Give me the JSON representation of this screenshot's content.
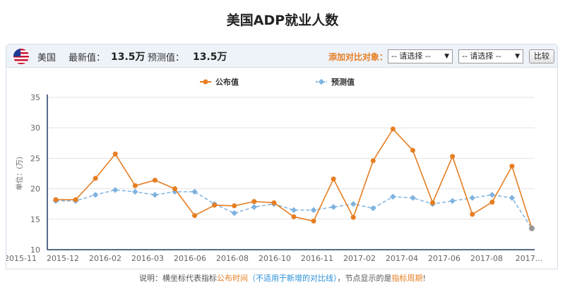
{
  "page": {
    "title": "美国ADP就业人数"
  },
  "topbar": {
    "country": "美国",
    "latest_label": "最新值：",
    "latest_value": "13.5万",
    "forecast_label": "预测值：",
    "forecast_value": "13.5万",
    "compare_label": "添加对比对象：",
    "select1": "-- 请选择 --",
    "select2": "-- 请选择 --",
    "compare_button": "比较"
  },
  "footer": {
    "p1": "说明：横坐标代表指标",
    "p2": "公布时间",
    "p3": "（不适用于新增的对比线）",
    "p4": "，节点显示的是",
    "p5": "指标周期",
    "p6": "!"
  },
  "chart_data": {
    "type": "line",
    "ylabel": "单位：(万)",
    "ylim": [
      10,
      35
    ],
    "yticks": [
      10,
      15,
      20,
      25,
      30,
      35
    ],
    "x_tick_labels": [
      "2015-11",
      "2015-12",
      "2016-02",
      "2016-03",
      "2016-06",
      "2016-08",
      "2016-10",
      "2016-11",
      "2017-02",
      "2017-04",
      "2017-06",
      "2017-08",
      "2017..."
    ],
    "legend_position": "top-center",
    "grid": {
      "horizontal": true,
      "vertical": false
    },
    "colors": {
      "published": "#e67e22",
      "forecast": "#7fb3e0"
    },
    "series": [
      {
        "name": "公布值",
        "style": "solid",
        "values": [
          18.2,
          18.2,
          21.7,
          25.7,
          20.5,
          21.4,
          20.0,
          15.6,
          17.3,
          17.2,
          17.9,
          17.7,
          15.4,
          14.7,
          21.6,
          15.3,
          24.6,
          29.8,
          26.3,
          17.7,
          25.3,
          15.8,
          17.8,
          23.7,
          13.5
        ]
      },
      {
        "name": "预测值",
        "style": "dashed",
        "values": [
          18.0,
          18.0,
          19.0,
          19.8,
          19.5,
          19.0,
          19.5,
          19.5,
          17.5,
          16.0,
          17.0,
          17.5,
          16.5,
          16.5,
          17.0,
          17.5,
          16.8,
          18.7,
          18.5,
          17.5,
          18.0,
          18.5,
          19.0,
          18.5,
          13.5
        ]
      }
    ]
  }
}
